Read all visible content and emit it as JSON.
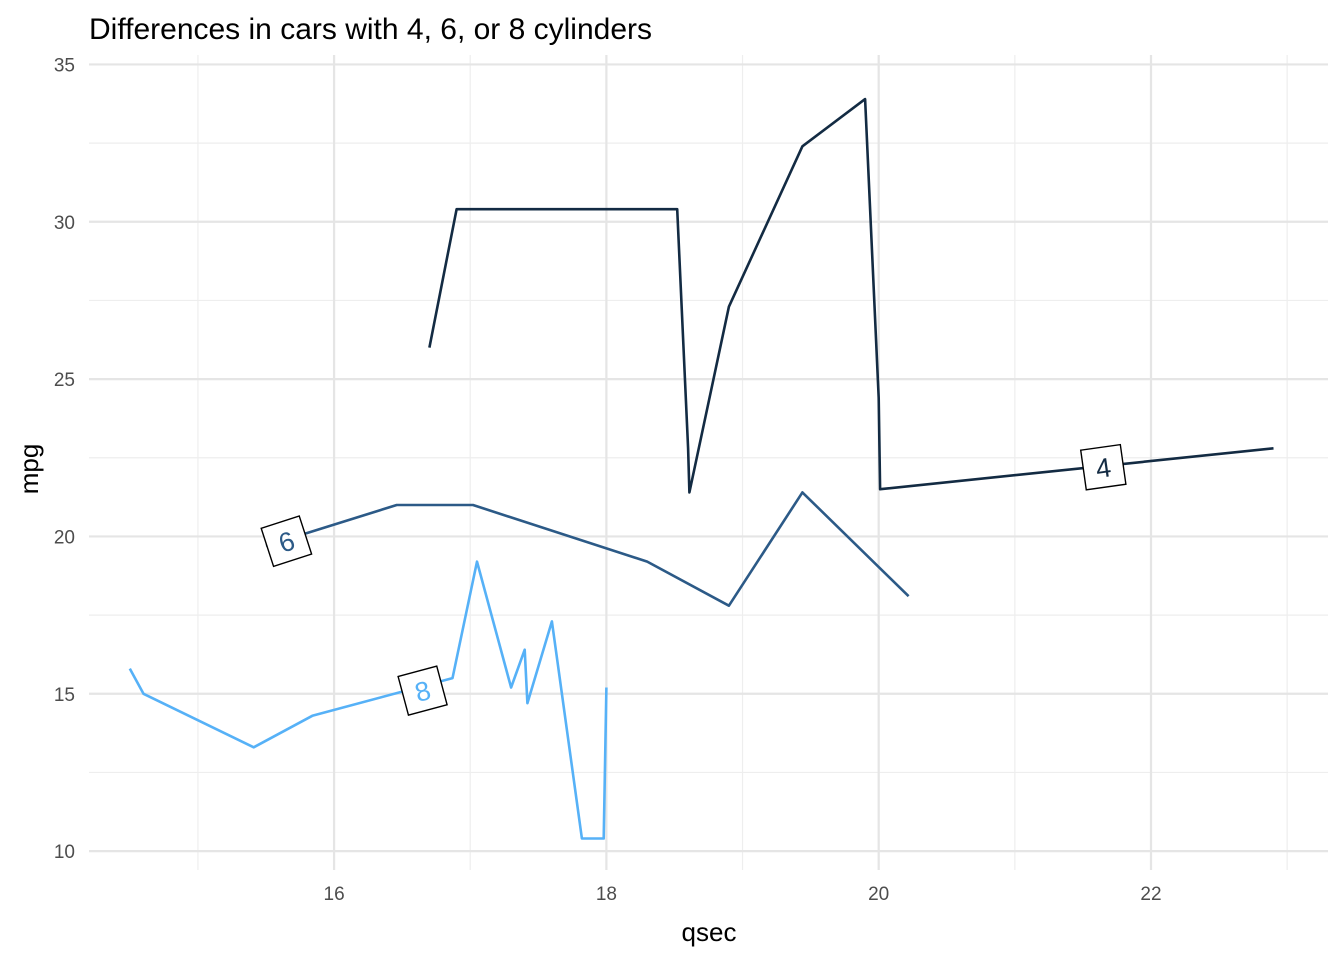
{
  "chart_data": {
    "type": "line",
    "title": "Differences in cars with 4, 6, or 8 cylinders",
    "xlabel": "qsec",
    "ylabel": "mpg",
    "xlim": [
      14.2,
      23.3
    ],
    "ylim": [
      9.4,
      35.3
    ],
    "x_ticks": [
      16,
      18,
      20,
      22
    ],
    "x_minor_ticks": [
      15,
      17,
      19,
      21,
      23
    ],
    "y_ticks": [
      10,
      15,
      20,
      25,
      30,
      35
    ],
    "y_minor_ticks": [
      12.5,
      17.5,
      22.5,
      27.5,
      32.5
    ],
    "grid": true,
    "legend": "none (direct labels)",
    "series": [
      {
        "name": "4",
        "color": "#132B43",
        "label_at": [
          21.65,
          22.2
        ],
        "label_rotation": -8,
        "points": [
          [
            16.7,
            26.0
          ],
          [
            16.9,
            30.4
          ],
          [
            18.52,
            30.4
          ],
          [
            18.6,
            22.8
          ],
          [
            18.61,
            21.4
          ],
          [
            18.9,
            27.3
          ],
          [
            19.44,
            32.4
          ],
          [
            19.9,
            33.9
          ],
          [
            20.0,
            24.4
          ],
          [
            20.01,
            21.5
          ],
          [
            22.9,
            22.8
          ]
        ]
      },
      {
        "name": "6",
        "color": "#2C5A87",
        "label_at": [
          15.65,
          19.85
        ],
        "label_rotation": -18,
        "points": [
          [
            15.5,
            19.7
          ],
          [
            16.46,
            21.0
          ],
          [
            17.02,
            21.0
          ],
          [
            18.3,
            19.2
          ],
          [
            18.9,
            17.8
          ],
          [
            19.44,
            21.4
          ],
          [
            20.22,
            18.1
          ]
        ]
      },
      {
        "name": "8",
        "color": "#56B1F7",
        "label_at": [
          16.65,
          15.1
        ],
        "label_rotation": -15,
        "points": [
          [
            14.5,
            15.8
          ],
          [
            14.6,
            15.0
          ],
          [
            15.41,
            13.3
          ],
          [
            15.84,
            14.3
          ],
          [
            16.87,
            15.5
          ],
          [
            17.05,
            19.2
          ],
          [
            17.3,
            15.2
          ],
          [
            17.4,
            16.4
          ],
          [
            17.42,
            14.7
          ],
          [
            17.6,
            17.3
          ],
          [
            17.82,
            10.4
          ],
          [
            17.98,
            10.4
          ],
          [
            18.0,
            15.2
          ]
        ]
      }
    ]
  }
}
